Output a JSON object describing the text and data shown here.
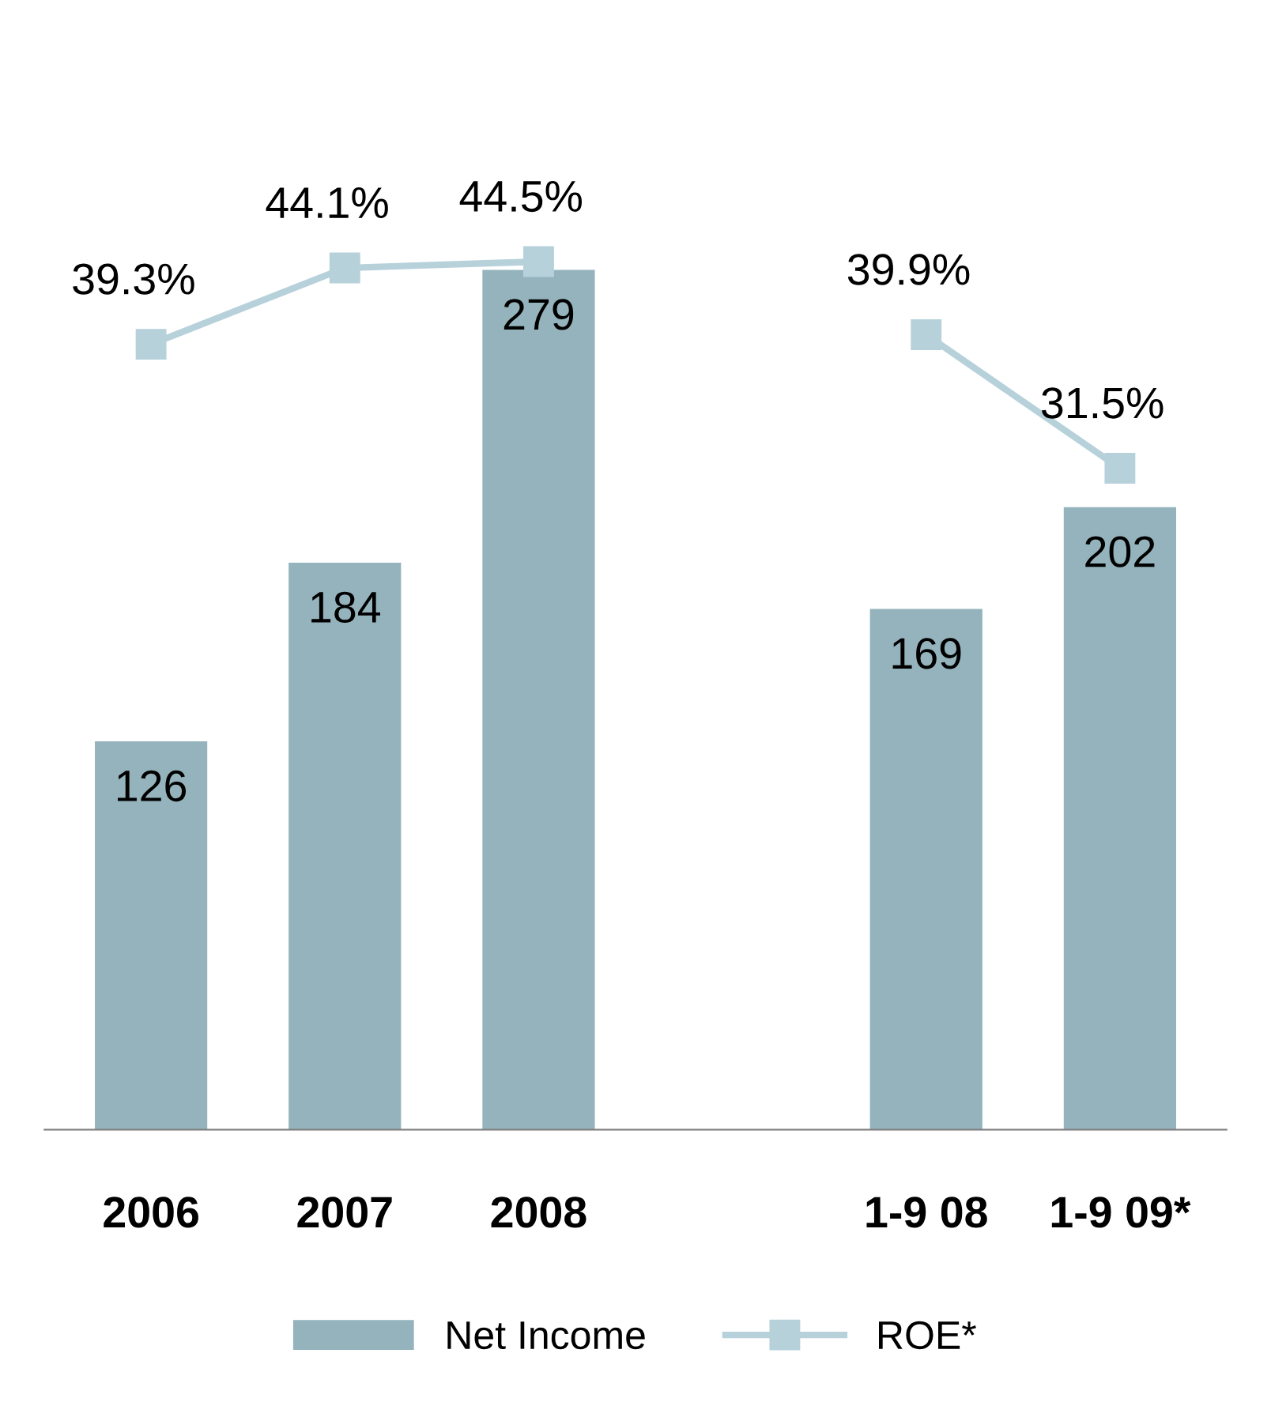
{
  "chart_data": {
    "type": "bar",
    "categories": [
      "2006",
      "2007",
      "2008",
      null,
      "1-9 08",
      "1-9 09*"
    ],
    "series": [
      {
        "name": "Net Income",
        "color": "#94b3bc",
        "values": [
          126,
          184,
          279,
          null,
          169,
          202
        ]
      },
      {
        "name": "ROE*",
        "type": "line",
        "axis": "y2",
        "color": "#b7d1db",
        "marker": "square",
        "values": [
          39.3,
          44.1,
          44.5,
          null,
          39.9,
          31.5
        ],
        "value_labels": [
          "39.3%",
          "44.1%",
          "44.5%",
          null,
          "39.9%",
          "31.5%"
        ]
      }
    ],
    "data_labels": true,
    "legend": "bottom",
    "grid": false,
    "tick_labels": "x"
  }
}
